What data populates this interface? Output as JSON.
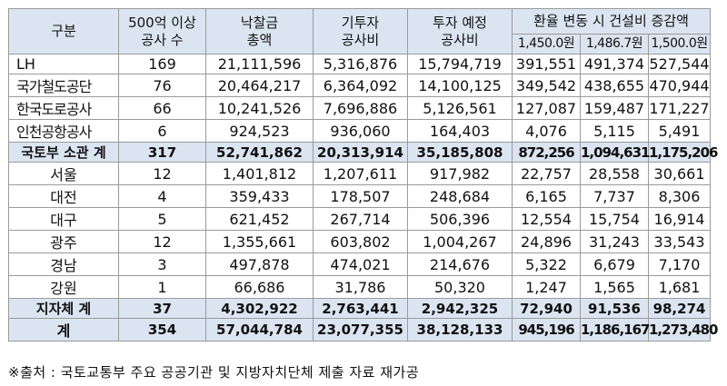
{
  "headers": {
    "category": "구분",
    "projects_line1": "500억 이상",
    "projects_line2": "공사 수",
    "award_line1": "낙찰금",
    "award_line2": "총액",
    "invested_line1": "기투자",
    "invested_line2": "공사비",
    "planned_line1": "투자 예정",
    "planned_line2": "공사비",
    "fx_group": "환율 변동 시 건설비 증감액",
    "fx_rates": [
      "1,450.0원",
      "1,486.7원",
      "1,500.0원"
    ]
  },
  "rows": [
    {
      "label": "LH",
      "count": "169",
      "award": "21,111,596",
      "invested": "5,316,876",
      "planned": "15,794,719",
      "fx1": "391,551",
      "fx2": "491,374",
      "fx3": "527,544"
    },
    {
      "label": "국가철도공단",
      "count": "76",
      "award": "20,464,217",
      "invested": "6,364,092",
      "planned": "14,100,125",
      "fx1": "349,542",
      "fx2": "438,655",
      "fx3": "470,944"
    },
    {
      "label": "한국도로공사",
      "count": "66",
      "award": "10,241,526",
      "invested": "7,696,886",
      "planned": "5,126,561",
      "fx1": "127,087",
      "fx2": "159,487",
      "fx3": "171,227"
    },
    {
      "label": "인천공항공사",
      "count": "6",
      "award": "924,523",
      "invested": "936,060",
      "planned": "164,403",
      "fx1": "4,076",
      "fx2": "5,115",
      "fx3": "5,491"
    },
    {
      "label": "국토부 소관 계",
      "count": "317",
      "award": "52,741,862",
      "invested": "20,313,914",
      "planned": "35,185,808",
      "fx1": "872,256",
      "fx2": "1,094,631",
      "fx3": "1,175,206"
    },
    {
      "label": "서울",
      "count": "12",
      "award": "1,401,812",
      "invested": "1,207,611",
      "planned": "917,982",
      "fx1": "22,757",
      "fx2": "28,558",
      "fx3": "30,661"
    },
    {
      "label": "대전",
      "count": "4",
      "award": "359,433",
      "invested": "178,507",
      "planned": "248,684",
      "fx1": "6,165",
      "fx2": "7,737",
      "fx3": "8,306"
    },
    {
      "label": "대구",
      "count": "5",
      "award": "621,452",
      "invested": "267,714",
      "planned": "506,396",
      "fx1": "12,554",
      "fx2": "15,754",
      "fx3": "16,914"
    },
    {
      "label": "광주",
      "count": "12",
      "award": "1,355,661",
      "invested": "603,802",
      "planned": "1,004,267",
      "fx1": "24,896",
      "fx2": "31,243",
      "fx3": "33,543"
    },
    {
      "label": "경남",
      "count": "3",
      "award": "497,878",
      "invested": "474,021",
      "planned": "214,676",
      "fx1": "5,322",
      "fx2": "6,679",
      "fx3": "7,170"
    },
    {
      "label": "강원",
      "count": "1",
      "award": "66,686",
      "invested": "31,786",
      "planned": "50,320",
      "fx1": "1,247",
      "fx2": "1,565",
      "fx3": "1,681"
    },
    {
      "label": "지자체 계",
      "count": "37",
      "award": "4,302,922",
      "invested": "2,763,441",
      "planned": "2,942,325",
      "fx1": "72,940",
      "fx2": "91,536",
      "fx3": "98,274"
    },
    {
      "label": "계",
      "count": "354",
      "award": "57,044,784",
      "invested": "23,077,355",
      "planned": "38,128,133",
      "fx1": "945,196",
      "fx2": "1,186,167",
      "fx3": "1,273,480"
    }
  ],
  "source_note": "※출처 : 국토교통부 주요 공공기관 및 지방자치단체 제출 자료 재가공"
}
